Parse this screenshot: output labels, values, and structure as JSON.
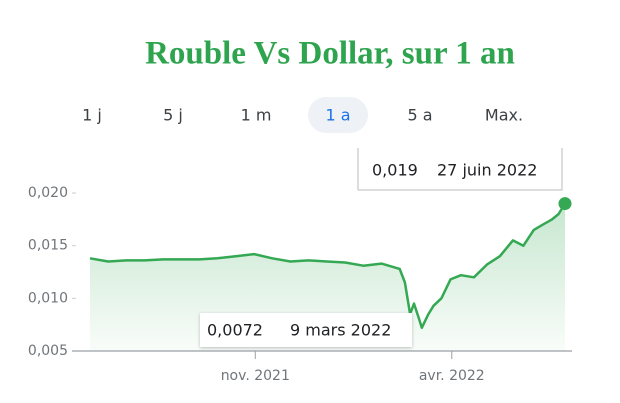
{
  "chart_data": {
    "type": "line",
    "title": "Rouble Vs Dollar, sur 1 an",
    "tabs": [
      "1 j",
      "5 j",
      "1 m",
      "1 a",
      "5 a",
      "Max."
    ],
    "selected_tab": 3,
    "color": "#34a853",
    "x": [
      "2021-06-27",
      "2021-07-11",
      "2021-07-25",
      "2021-08-08",
      "2021-08-22",
      "2021-09-05",
      "2021-09-19",
      "2021-10-03",
      "2021-10-17",
      "2021-10-31",
      "2021-11-14",
      "2021-11-28",
      "2021-12-12",
      "2021-12-26",
      "2022-01-09",
      "2022-01-23",
      "2022-02-06",
      "2022-02-20",
      "2022-02-24",
      "2022-02-28",
      "2022-03-03",
      "2022-03-07",
      "2022-03-09",
      "2022-03-14",
      "2022-03-18",
      "2022-03-24",
      "2022-03-31",
      "2022-04-08",
      "2022-04-18",
      "2022-04-28",
      "2022-05-08",
      "2022-05-18",
      "2022-05-26",
      "2022-06-03",
      "2022-06-10",
      "2022-06-17",
      "2022-06-22",
      "2022-06-27"
    ],
    "values": [
      0.0138,
      0.0135,
      0.0136,
      0.0136,
      0.0137,
      0.0137,
      0.0137,
      0.0138,
      0.014,
      0.0142,
      0.0138,
      0.0135,
      0.0136,
      0.0135,
      0.0134,
      0.0131,
      0.0133,
      0.0128,
      0.0115,
      0.0085,
      0.0095,
      0.008,
      0.0072,
      0.0085,
      0.0093,
      0.01,
      0.0118,
      0.0122,
      0.012,
      0.0132,
      0.014,
      0.0155,
      0.015,
      0.0165,
      0.017,
      0.0175,
      0.018,
      0.019
    ],
    "xlim": [
      "2021-06-27",
      "2022-06-27"
    ],
    "xticks": [
      {
        "value": "2021-11-01",
        "label": "nov. 2021"
      },
      {
        "value": "2022-04-01",
        "label": "avr. 2022"
      }
    ],
    "ylim": [
      0.005,
      0.021
    ],
    "yticks": [
      {
        "value": 0.005,
        "label": "0,005"
      },
      {
        "value": 0.01,
        "label": "0,010"
      },
      {
        "value": 0.015,
        "label": "0,015"
      },
      {
        "value": 0.02,
        "label": "0,020"
      }
    ],
    "annotations": [
      {
        "value": 0.019,
        "label": "0,019",
        "date": "27 juin 2022"
      },
      {
        "value": 0.0072,
        "label": "0,0072",
        "date": "9 mars 2022"
      }
    ]
  }
}
